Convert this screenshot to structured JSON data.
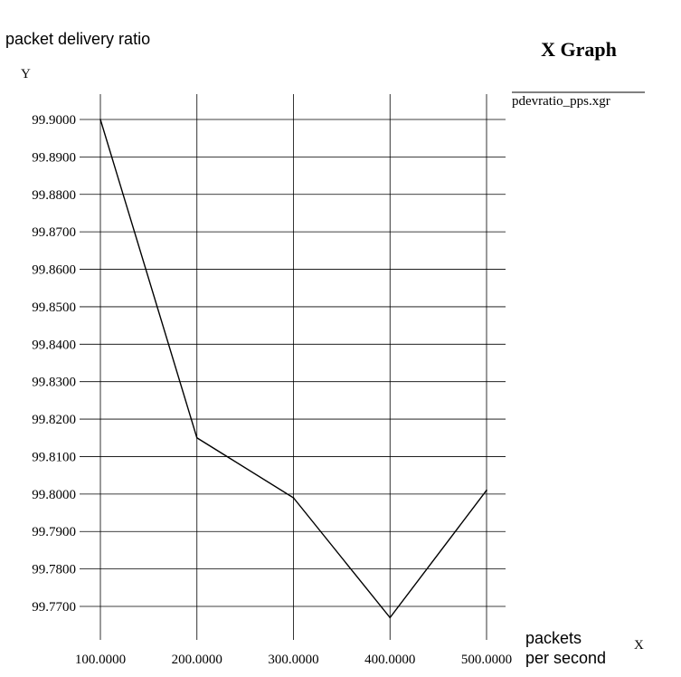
{
  "chart_data": {
    "type": "line",
    "title": "X Graph",
    "ylabel": "packet delivery ratio",
    "y_axis_letter": "Y",
    "xlabel_line1": "packets",
    "xlabel_line2": "per second",
    "x_axis_letter": "X",
    "legend_placement": "top-right",
    "grid": true,
    "x_ticks": [
      "100.0000",
      "200.0000",
      "300.0000",
      "400.0000",
      "500.0000"
    ],
    "y_ticks": [
      "99.9000",
      "99.8900",
      "99.8800",
      "99.8700",
      "99.8600",
      "99.8500",
      "99.8400",
      "99.8300",
      "99.8200",
      "99.8100",
      "99.8000",
      "99.7900",
      "99.7800",
      "99.7700"
    ],
    "xlim": [
      100,
      500
    ],
    "ylim": [
      99.77,
      99.9
    ],
    "series": [
      {
        "name": "pdevratio_pps.xgr",
        "color": "#000000",
        "x": [
          100,
          200,
          300,
          400,
          500
        ],
        "y": [
          99.9,
          99.815,
          99.799,
          99.767,
          99.801
        ]
      }
    ]
  }
}
